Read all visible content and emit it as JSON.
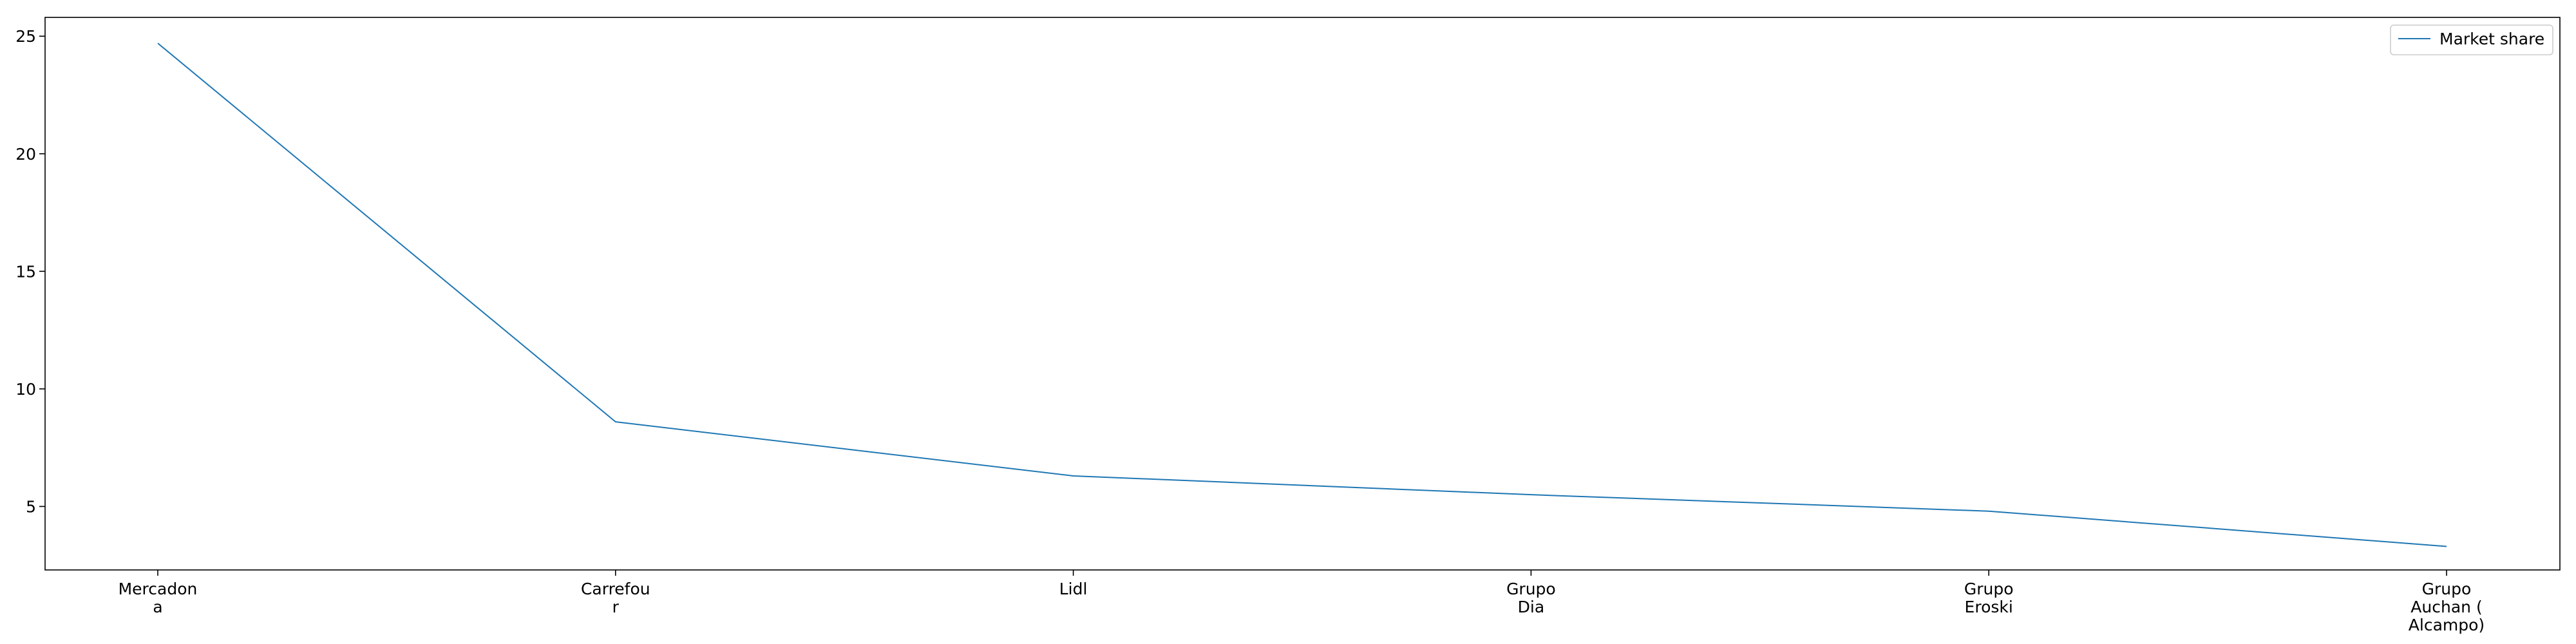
{
  "chart_data": {
    "type": "line",
    "title": "",
    "xlabel": "",
    "ylabel": "",
    "categories": [
      [
        "Mercadon",
        "a"
      ],
      [
        "Carrefou",
        "r"
      ],
      [
        "Lidl"
      ],
      [
        "Grupo",
        "Dia"
      ],
      [
        "Grupo",
        "Eroski"
      ],
      [
        "Grupo",
        "Auchan (",
        "Alcampo)"
      ]
    ],
    "series": [
      {
        "name": "Market share",
        "color": "#1f77b4",
        "values": [
          24.7,
          8.6,
          6.3,
          5.5,
          4.8,
          3.3
        ]
      }
    ],
    "yticks": [
      5,
      10,
      15,
      20,
      25
    ],
    "ylim": [
      2.3,
      25.8
    ],
    "grid": false,
    "legend": {
      "position": "top-right",
      "entries": [
        "Market share"
      ]
    }
  }
}
